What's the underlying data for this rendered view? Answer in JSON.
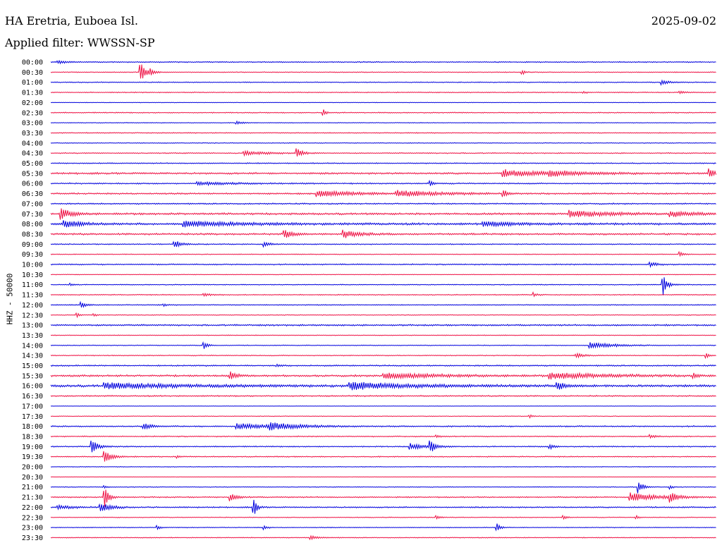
{
  "header": {
    "station": "HA Eretria, Euboea Isl.",
    "date": "2025-09-02",
    "filter": "Applied filter: WWSSN-SP"
  },
  "chart_data": {
    "type": "line",
    "title": "HA Eretria, Euboea Isl.",
    "subtitle": "Applied filter: WWSSN-SP",
    "ylabel": "HHZ - 50000",
    "grid": false,
    "colors": {
      "even_hour": "#0000dd",
      "half_hour": "#ee1144"
    },
    "rows": [
      {
        "label": "00:00",
        "color": "blue",
        "noise": 0.8,
        "events": [
          {
            "x": 0.01,
            "amp": 2,
            "w": 0.015
          }
        ]
      },
      {
        "label": "00:30",
        "color": "red",
        "noise": 0.6,
        "events": [
          {
            "x": 0.135,
            "amp": 14,
            "w": 0.008
          },
          {
            "x": 0.15,
            "amp": 3,
            "w": 0.005
          },
          {
            "x": 0.708,
            "amp": 4,
            "w": 0.004
          }
        ]
      },
      {
        "label": "01:00",
        "color": "blue",
        "noise": 0.7,
        "events": [
          {
            "x": 0.918,
            "amp": 3,
            "w": 0.012
          }
        ]
      },
      {
        "label": "01:30",
        "color": "red",
        "noise": 0.7,
        "events": [
          {
            "x": 0.8,
            "amp": 2,
            "w": 0.004
          },
          {
            "x": 0.945,
            "amp": 2,
            "w": 0.008
          }
        ]
      },
      {
        "label": "02:00",
        "color": "blue",
        "noise": 0.4,
        "events": []
      },
      {
        "label": "02:30",
        "color": "red",
        "noise": 0.8,
        "events": [
          {
            "x": 0.41,
            "amp": 4,
            "w": 0.004
          }
        ]
      },
      {
        "label": "03:00",
        "color": "blue",
        "noise": 0.5,
        "events": [
          {
            "x": 0.28,
            "amp": 2,
            "w": 0.008
          }
        ]
      },
      {
        "label": "03:30",
        "color": "red",
        "noise": 0.7,
        "events": []
      },
      {
        "label": "04:00",
        "color": "blue",
        "noise": 0.6,
        "events": []
      },
      {
        "label": "04:30",
        "color": "red",
        "noise": 0.8,
        "events": [
          {
            "x": 0.29,
            "amp": 3,
            "w": 0.03
          },
          {
            "x": 0.37,
            "amp": 6,
            "w": 0.008
          }
        ]
      },
      {
        "label": "05:00",
        "color": "blue",
        "noise": 0.8,
        "events": []
      },
      {
        "label": "05:30",
        "color": "red",
        "noise": 1.4,
        "events": [
          {
            "x": 0.68,
            "amp": 5,
            "w": 0.05
          },
          {
            "x": 0.75,
            "amp": 3,
            "w": 0.05
          },
          {
            "x": 0.99,
            "amp": 7,
            "w": 0.01
          }
        ]
      },
      {
        "label": "06:00",
        "color": "blue",
        "noise": 1.0,
        "events": [
          {
            "x": 0.22,
            "amp": 2,
            "w": 0.05
          },
          {
            "x": 0.57,
            "amp": 4,
            "w": 0.005
          }
        ]
      },
      {
        "label": "06:30",
        "color": "red",
        "noise": 1.2,
        "events": [
          {
            "x": 0.4,
            "amp": 4,
            "w": 0.06
          },
          {
            "x": 0.52,
            "amp": 4,
            "w": 0.06
          },
          {
            "x": 0.68,
            "amp": 5,
            "w": 0.006
          }
        ]
      },
      {
        "label": "07:00",
        "color": "blue",
        "noise": 1.0,
        "events": []
      },
      {
        "label": "07:30",
        "color": "red",
        "noise": 1.5,
        "events": [
          {
            "x": 0.015,
            "amp": 8,
            "w": 0.015
          },
          {
            "x": 0.78,
            "amp": 5,
            "w": 0.05
          },
          {
            "x": 0.93,
            "amp": 4,
            "w": 0.03
          }
        ]
      },
      {
        "label": "08:00",
        "color": "blue",
        "noise": 1.6,
        "events": [
          {
            "x": 0.02,
            "amp": 6,
            "w": 0.02
          },
          {
            "x": 0.2,
            "amp": 4,
            "w": 0.08
          },
          {
            "x": 0.65,
            "amp": 3,
            "w": 0.05
          }
        ]
      },
      {
        "label": "08:30",
        "color": "red",
        "noise": 1.4,
        "events": [
          {
            "x": 0.35,
            "amp": 8,
            "w": 0.01
          },
          {
            "x": 0.44,
            "amp": 6,
            "w": 0.02
          }
        ]
      },
      {
        "label": "09:00",
        "color": "blue",
        "noise": 0.8,
        "events": [
          {
            "x": 0.185,
            "amp": 6,
            "w": 0.01
          },
          {
            "x": 0.32,
            "amp": 3,
            "w": 0.01
          }
        ]
      },
      {
        "label": "09:30",
        "color": "red",
        "noise": 0.6,
        "events": [
          {
            "x": 0.945,
            "amp": 4,
            "w": 0.006
          }
        ]
      },
      {
        "label": "10:00",
        "color": "blue",
        "noise": 0.9,
        "events": [
          {
            "x": 0.9,
            "amp": 3,
            "w": 0.01
          }
        ]
      },
      {
        "label": "10:30",
        "color": "red",
        "noise": 0.5,
        "events": []
      },
      {
        "label": "11:00",
        "color": "blue",
        "noise": 0.7,
        "events": [
          {
            "x": 0.03,
            "amp": 2,
            "w": 0.004
          },
          {
            "x": 0.92,
            "amp": 14,
            "w": 0.006
          }
        ]
      },
      {
        "label": "11:30",
        "color": "red",
        "noise": 0.7,
        "events": [
          {
            "x": 0.23,
            "amp": 2,
            "w": 0.01
          },
          {
            "x": 0.725,
            "amp": 3,
            "w": 0.005
          }
        ]
      },
      {
        "label": "12:00",
        "color": "blue",
        "noise": 0.7,
        "events": [
          {
            "x": 0.045,
            "amp": 6,
            "w": 0.006
          },
          {
            "x": 0.17,
            "amp": 2,
            "w": 0.004
          }
        ]
      },
      {
        "label": "12:30",
        "color": "red",
        "noise": 0.6,
        "events": [
          {
            "x": 0.04,
            "amp": 3,
            "w": 0.004
          },
          {
            "x": 0.065,
            "amp": 2,
            "w": 0.004
          }
        ]
      },
      {
        "label": "13:00",
        "color": "blue",
        "noise": 1.2,
        "events": []
      },
      {
        "label": "13:30",
        "color": "red",
        "noise": 0.5,
        "events": []
      },
      {
        "label": "14:00",
        "color": "blue",
        "noise": 0.6,
        "events": [
          {
            "x": 0.23,
            "amp": 5,
            "w": 0.006
          },
          {
            "x": 0.81,
            "amp": 5,
            "w": 0.03
          }
        ]
      },
      {
        "label": "14:30",
        "color": "red",
        "noise": 0.7,
        "events": [
          {
            "x": 0.79,
            "amp": 3,
            "w": 0.01
          },
          {
            "x": 0.985,
            "amp": 3,
            "w": 0.004
          }
        ]
      },
      {
        "label": "15:00",
        "color": "blue",
        "noise": 1.0,
        "events": [
          {
            "x": 0.34,
            "amp": 2,
            "w": 0.005
          }
        ]
      },
      {
        "label": "15:30",
        "color": "red",
        "noise": 1.4,
        "events": [
          {
            "x": 0.27,
            "amp": 6,
            "w": 0.008
          },
          {
            "x": 0.5,
            "amp": 4,
            "w": 0.08
          },
          {
            "x": 0.75,
            "amp": 4,
            "w": 0.08
          },
          {
            "x": 0.965,
            "amp": 5,
            "w": 0.004
          }
        ]
      },
      {
        "label": "16:00",
        "color": "blue",
        "noise": 1.8,
        "events": [
          {
            "x": 0.08,
            "amp": 4,
            "w": 0.1
          },
          {
            "x": 0.45,
            "amp": 5,
            "w": 0.08
          },
          {
            "x": 0.76,
            "amp": 7,
            "w": 0.01
          }
        ]
      },
      {
        "label": "16:30",
        "color": "red",
        "noise": 1.0,
        "events": []
      },
      {
        "label": "17:00",
        "color": "blue",
        "noise": 0.3,
        "events": []
      },
      {
        "label": "17:30",
        "color": "red",
        "noise": 0.5,
        "events": [
          {
            "x": 0.72,
            "amp": 2,
            "w": 0.004
          }
        ]
      },
      {
        "label": "18:00",
        "color": "blue",
        "noise": 1.0,
        "events": [
          {
            "x": 0.14,
            "amp": 5,
            "w": 0.01
          },
          {
            "x": 0.28,
            "amp": 4,
            "w": 0.05
          },
          {
            "x": 0.33,
            "amp": 4,
            "w": 0.04
          }
        ]
      },
      {
        "label": "18:30",
        "color": "red",
        "noise": 0.8,
        "events": [
          {
            "x": 0.58,
            "amp": 2,
            "w": 0.005
          },
          {
            "x": 0.9,
            "amp": 2,
            "w": 0.01
          }
        ]
      },
      {
        "label": "19:00",
        "color": "blue",
        "noise": 0.9,
        "events": [
          {
            "x": 0.062,
            "amp": 10,
            "w": 0.008
          },
          {
            "x": 0.54,
            "amp": 4,
            "w": 0.02
          },
          {
            "x": 0.57,
            "amp": 8,
            "w": 0.008
          },
          {
            "x": 0.75,
            "amp": 4,
            "w": 0.005
          }
        ]
      },
      {
        "label": "19:30",
        "color": "red",
        "noise": 0.8,
        "events": [
          {
            "x": 0.08,
            "amp": 10,
            "w": 0.01
          },
          {
            "x": 0.19,
            "amp": 2,
            "w": 0.004
          }
        ]
      },
      {
        "label": "20:00",
        "color": "blue",
        "noise": 0.5,
        "events": []
      },
      {
        "label": "20:30",
        "color": "red",
        "noise": 0.3,
        "events": []
      },
      {
        "label": "21:00",
        "color": "blue",
        "noise": 0.6,
        "events": [
          {
            "x": 0.08,
            "amp": 2,
            "w": 0.005
          },
          {
            "x": 0.883,
            "amp": 10,
            "w": 0.006
          },
          {
            "x": 0.93,
            "amp": 3,
            "w": 0.004
          }
        ]
      },
      {
        "label": "21:30",
        "color": "red",
        "noise": 0.9,
        "events": [
          {
            "x": 0.08,
            "amp": 16,
            "w": 0.006
          },
          {
            "x": 0.27,
            "amp": 5,
            "w": 0.01
          },
          {
            "x": 0.87,
            "amp": 6,
            "w": 0.04
          },
          {
            "x": 0.93,
            "amp": 6,
            "w": 0.01
          }
        ]
      },
      {
        "label": "22:00",
        "color": "blue",
        "noise": 1.0,
        "events": [
          {
            "x": 0.01,
            "amp": 3,
            "w": 0.02
          },
          {
            "x": 0.075,
            "amp": 6,
            "w": 0.015
          },
          {
            "x": 0.305,
            "amp": 14,
            "w": 0.004
          }
        ]
      },
      {
        "label": "22:30",
        "color": "red",
        "noise": 0.6,
        "events": [
          {
            "x": 0.58,
            "amp": 3,
            "w": 0.004
          },
          {
            "x": 0.77,
            "amp": 4,
            "w": 0.004
          },
          {
            "x": 0.88,
            "amp": 3,
            "w": 0.004
          }
        ]
      },
      {
        "label": "23:00",
        "color": "blue",
        "noise": 0.6,
        "events": [
          {
            "x": 0.16,
            "amp": 3,
            "w": 0.004
          },
          {
            "x": 0.32,
            "amp": 4,
            "w": 0.004
          },
          {
            "x": 0.67,
            "amp": 6,
            "w": 0.005
          }
        ]
      },
      {
        "label": "23:30",
        "color": "red",
        "noise": 0.6,
        "events": [
          {
            "x": 0.39,
            "amp": 3,
            "w": 0.01
          }
        ]
      }
    ]
  }
}
